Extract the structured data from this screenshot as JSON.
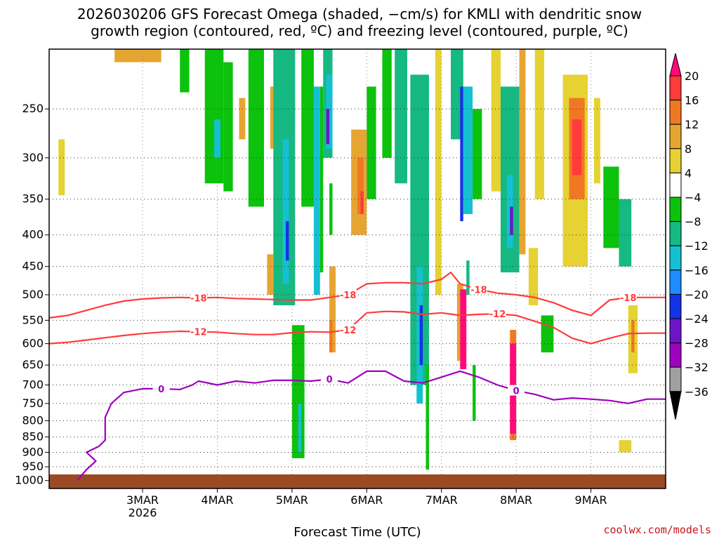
{
  "chart_data": {
    "type": "heatmap",
    "title_line1": "2026030206 GFS Forecast Omega (shaded, −cm/s) for KMLI with dendritic snow",
    "title_line2": "growth region (contoured, red, ºC) and freezing level (contoured, purple, ºC)",
    "xlabel": "Forecast Time (UTC)",
    "credit": "coolwx.com/models",
    "x_start_hours": -12,
    "x_end_hours": 186,
    "x_ticks": [
      {
        "hours": 18,
        "label": "3MAR",
        "sub": "2026"
      },
      {
        "hours": 42,
        "label": "4MAR",
        "sub": ""
      },
      {
        "hours": 66,
        "label": "5MAR",
        "sub": ""
      },
      {
        "hours": 90,
        "label": "6MAR",
        "sub": ""
      },
      {
        "hours": 114,
        "label": "7MAR",
        "sub": ""
      },
      {
        "hours": 138,
        "label": "8MAR",
        "sub": ""
      },
      {
        "hours": 162,
        "label": "9MAR",
        "sub": ""
      }
    ],
    "y_top_hpa": 200,
    "y_bottom_hpa": 1030,
    "y_ticks": [
      250,
      300,
      350,
      400,
      450,
      500,
      550,
      600,
      650,
      700,
      750,
      800,
      850,
      900,
      950,
      1000
    ],
    "colorbar": {
      "labels": [
        "20",
        "16",
        "12",
        "8",
        "4",
        "−4",
        "−8",
        "−12",
        "−16",
        "−20",
        "−24",
        "−28",
        "−32",
        "−36"
      ],
      "colors": [
        "#ff0a7a",
        "#ff3b3b",
        "#f07823",
        "#e6a532",
        "#e6d232",
        "#ffffff",
        "#0cc20c",
        "#15b981",
        "#14c0d2",
        "#1e8cff",
        "#1432e6",
        "#6e14c8",
        "#9e00be",
        "#a0a0a0",
        "#000000"
      ]
    },
    "omega_cells": [
      {
        "t": -9,
        "t2": -7,
        "p1": 280,
        "p2": 345,
        "v": 6
      },
      {
        "t": 9,
        "t2": 24,
        "p1": 200,
        "p2": 210,
        "v": 8
      },
      {
        "t": 30,
        "t2": 33,
        "p1": 200,
        "p2": 235,
        "v": -6
      },
      {
        "t": 38,
        "t2": 44,
        "p1": 200,
        "p2": 330,
        "v": -7
      },
      {
        "t": 41,
        "t2": 43,
        "p1": 260,
        "p2": 300,
        "v": -13
      },
      {
        "t": 44,
        "t2": 47,
        "p1": 210,
        "p2": 340,
        "v": -6
      },
      {
        "t": 49,
        "t2": 51,
        "p1": 240,
        "p2": 280,
        "v": 8
      },
      {
        "t": 52,
        "t2": 57,
        "p1": 200,
        "p2": 360,
        "v": -7
      },
      {
        "t": 59,
        "t2": 61,
        "p1": 230,
        "p2": 290,
        "v": 9
      },
      {
        "t": 60,
        "t2": 67,
        "p1": 200,
        "p2": 520,
        "v": -8
      },
      {
        "t": 63,
        "t2": 65,
        "p1": 280,
        "p2": 480,
        "v": -14
      },
      {
        "t": 64,
        "t2": 65,
        "p1": 380,
        "p2": 440,
        "v": -20
      },
      {
        "t": 58,
        "t2": 60,
        "p1": 430,
        "p2": 500,
        "v": 8
      },
      {
        "t": 66,
        "t2": 70,
        "p1": 560,
        "p2": 920,
        "v": -7
      },
      {
        "t": 68,
        "t2": 69,
        "p1": 750,
        "p2": 900,
        "v": -13
      },
      {
        "t": 69,
        "t2": 73,
        "p1": 200,
        "p2": 360,
        "v": -7
      },
      {
        "t": 73,
        "t2": 75,
        "p1": 230,
        "p2": 500,
        "v": -14
      },
      {
        "t": 75,
        "t2": 76,
        "p1": 230,
        "p2": 460,
        "v": -7
      },
      {
        "t": 76,
        "t2": 79,
        "p1": 200,
        "p2": 300,
        "v": -8
      },
      {
        "t": 77,
        "t2": 79,
        "p1": 220,
        "p2": 290,
        "v": -14
      },
      {
        "t": 77,
        "t2": 78,
        "p1": 250,
        "p2": 285,
        "v": -24
      },
      {
        "t": 78,
        "t2": 79,
        "p1": 330,
        "p2": 400,
        "v": -6
      },
      {
        "t": 78,
        "t2": 80,
        "p1": 450,
        "p2": 620,
        "v": 8
      },
      {
        "t": 78,
        "t2": 79,
        "p1": 550,
        "p2": 620,
        "v": 14
      },
      {
        "t": 85,
        "t2": 90,
        "p1": 270,
        "p2": 400,
        "v": 9
      },
      {
        "t": 87,
        "t2": 89,
        "p1": 300,
        "p2": 370,
        "v": 14
      },
      {
        "t": 88,
        "t2": 89,
        "p1": 340,
        "p2": 370,
        "v": 18
      },
      {
        "t": 90,
        "t2": 93,
        "p1": 230,
        "p2": 350,
        "v": -6
      },
      {
        "t": 95,
        "t2": 98,
        "p1": 200,
        "p2": 300,
        "v": -7
      },
      {
        "t": 99,
        "t2": 103,
        "p1": 200,
        "p2": 330,
        "v": -8
      },
      {
        "t": 104,
        "t2": 110,
        "p1": 220,
        "p2": 700,
        "v": -8
      },
      {
        "t": 106,
        "t2": 108,
        "p1": 450,
        "p2": 750,
        "v": -14
      },
      {
        "t": 107,
        "t2": 108,
        "p1": 520,
        "p2": 650,
        "v": -22
      },
      {
        "t": 109,
        "t2": 110,
        "p1": 650,
        "p2": 960,
        "v": -7
      },
      {
        "t": 112,
        "t2": 114,
        "p1": 200,
        "p2": 500,
        "v": 6
      },
      {
        "t": 117,
        "t2": 121,
        "p1": 200,
        "p2": 280,
        "v": -8
      },
      {
        "t": 120,
        "t2": 121,
        "p1": 230,
        "p2": 380,
        "v": -20
      },
      {
        "t": 121,
        "t2": 124,
        "p1": 230,
        "p2": 370,
        "v": -13
      },
      {
        "t": 124,
        "t2": 127,
        "p1": 250,
        "p2": 350,
        "v": -7
      },
      {
        "t": 119,
        "t2": 121,
        "p1": 480,
        "p2": 640,
        "v": 9
      },
      {
        "t": 120,
        "t2": 122,
        "p1": 490,
        "p2": 660,
        "v": 22
      },
      {
        "t": 122,
        "t2": 123,
        "p1": 440,
        "p2": 500,
        "v": -8
      },
      {
        "t": 124,
        "t2": 125,
        "p1": 650,
        "p2": 800,
        "v": -7
      },
      {
        "t": 130,
        "t2": 133,
        "p1": 200,
        "p2": 340,
        "v": 6
      },
      {
        "t": 133,
        "t2": 139,
        "p1": 230,
        "p2": 460,
        "v": -8
      },
      {
        "t": 135,
        "t2": 137,
        "p1": 320,
        "p2": 420,
        "v": -14
      },
      {
        "t": 136,
        "t2": 137,
        "p1": 360,
        "p2": 400,
        "v": -24
      },
      {
        "t": 136,
        "t2": 138,
        "p1": 570,
        "p2": 860,
        "v": 12
      },
      {
        "t": 136,
        "t2": 138,
        "p1": 600,
        "p2": 840,
        "v": 22
      },
      {
        "t": 139,
        "t2": 141,
        "p1": 200,
        "p2": 430,
        "v": 8
      },
      {
        "t": 142,
        "t2": 145,
        "p1": 420,
        "p2": 520,
        "v": 6
      },
      {
        "t": 144,
        "t2": 147,
        "p1": 200,
        "p2": 350,
        "v": 6
      },
      {
        "t": 146,
        "t2": 150,
        "p1": 540,
        "p2": 620,
        "v": -7
      },
      {
        "t": 153,
        "t2": 161,
        "p1": 220,
        "p2": 450,
        "v": 7
      },
      {
        "t": 155,
        "t2": 160,
        "p1": 240,
        "p2": 350,
        "v": 13
      },
      {
        "t": 156,
        "t2": 159,
        "p1": 260,
        "p2": 320,
        "v": 17
      },
      {
        "t": 163,
        "t2": 165,
        "p1": 240,
        "p2": 330,
        "v": 6
      },
      {
        "t": 166,
        "t2": 171,
        "p1": 310,
        "p2": 420,
        "v": -7
      },
      {
        "t": 171,
        "t2": 175,
        "p1": 350,
        "p2": 450,
        "v": -8
      },
      {
        "t": 174,
        "t2": 177,
        "p1": 520,
        "p2": 670,
        "v": 6
      },
      {
        "t": 175,
        "t2": 176,
        "p1": 550,
        "p2": 620,
        "v": 12
      },
      {
        "t": 171,
        "t2": 175,
        "p1": 860,
        "p2": 900,
        "v": 6
      }
    ],
    "contour_m18": {
      "color": "#ff3b3b",
      "label": "-18",
      "points": [
        [
          -12,
          545
        ],
        [
          -6,
          540
        ],
        [
          0,
          530
        ],
        [
          6,
          520
        ],
        [
          12,
          512
        ],
        [
          18,
          508
        ],
        [
          24,
          506
        ],
        [
          30,
          505
        ],
        [
          36,
          506
        ],
        [
          42,
          505
        ],
        [
          48,
          507
        ],
        [
          54,
          508
        ],
        [
          60,
          509
        ],
        [
          66,
          510
        ],
        [
          72,
          510
        ],
        [
          78,
          505
        ],
        [
          84,
          500
        ],
        [
          90,
          480
        ],
        [
          96,
          478
        ],
        [
          102,
          478
        ],
        [
          108,
          480
        ],
        [
          114,
          472
        ],
        [
          117,
          460
        ],
        [
          120,
          480
        ],
        [
          126,
          490
        ],
        [
          132,
          497
        ],
        [
          138,
          500
        ],
        [
          144,
          505
        ],
        [
          150,
          515
        ],
        [
          156,
          530
        ],
        [
          162,
          540
        ],
        [
          168,
          510
        ],
        [
          174,
          505
        ],
        [
          180,
          505
        ],
        [
          186,
          505
        ]
      ]
    },
    "contour_m12": {
      "color": "#ff3b3b",
      "label": "-12",
      "points": [
        [
          -12,
          600
        ],
        [
          -6,
          597
        ],
        [
          0,
          592
        ],
        [
          6,
          587
        ],
        [
          12,
          582
        ],
        [
          18,
          578
        ],
        [
          24,
          575
        ],
        [
          30,
          573
        ],
        [
          36,
          574
        ],
        [
          42,
          575
        ],
        [
          48,
          578
        ],
        [
          54,
          580
        ],
        [
          60,
          580
        ],
        [
          66,
          576
        ],
        [
          72,
          574
        ],
        [
          78,
          575
        ],
        [
          84,
          570
        ],
        [
          90,
          535
        ],
        [
          96,
          532
        ],
        [
          102,
          533
        ],
        [
          108,
          538
        ],
        [
          114,
          535
        ],
        [
          120,
          540
        ],
        [
          126,
          538
        ],
        [
          132,
          537
        ],
        [
          138,
          540
        ],
        [
          144,
          552
        ],
        [
          150,
          565
        ],
        [
          156,
          588
        ],
        [
          162,
          600
        ],
        [
          168,
          588
        ],
        [
          174,
          578
        ],
        [
          180,
          577
        ],
        [
          186,
          577
        ]
      ]
    },
    "contour_0c": {
      "color": "#9e00be",
      "label": "0",
      "points": [
        [
          -3,
          1000
        ],
        [
          0,
          960
        ],
        [
          3,
          930
        ],
        [
          0,
          900
        ],
        [
          4,
          880
        ],
        [
          6,
          860
        ],
        [
          6,
          790
        ],
        [
          8,
          750
        ],
        [
          12,
          720
        ],
        [
          18,
          710
        ],
        [
          24,
          710
        ],
        [
          30,
          712
        ],
        [
          34,
          700
        ],
        [
          36,
          690
        ],
        [
          42,
          700
        ],
        [
          48,
          690
        ],
        [
          54,
          695
        ],
        [
          60,
          688
        ],
        [
          66,
          688
        ],
        [
          72,
          690
        ],
        [
          78,
          685
        ],
        [
          84,
          695
        ],
        [
          90,
          665
        ],
        [
          96,
          665
        ],
        [
          102,
          690
        ],
        [
          108,
          695
        ],
        [
          114,
          680
        ],
        [
          120,
          665
        ],
        [
          126,
          680
        ],
        [
          132,
          700
        ],
        [
          138,
          715
        ],
        [
          144,
          725
        ],
        [
          150,
          740
        ],
        [
          156,
          735
        ],
        [
          162,
          738
        ],
        [
          168,
          742
        ],
        [
          174,
          750
        ],
        [
          180,
          738
        ],
        [
          186,
          738
        ]
      ]
    }
  }
}
